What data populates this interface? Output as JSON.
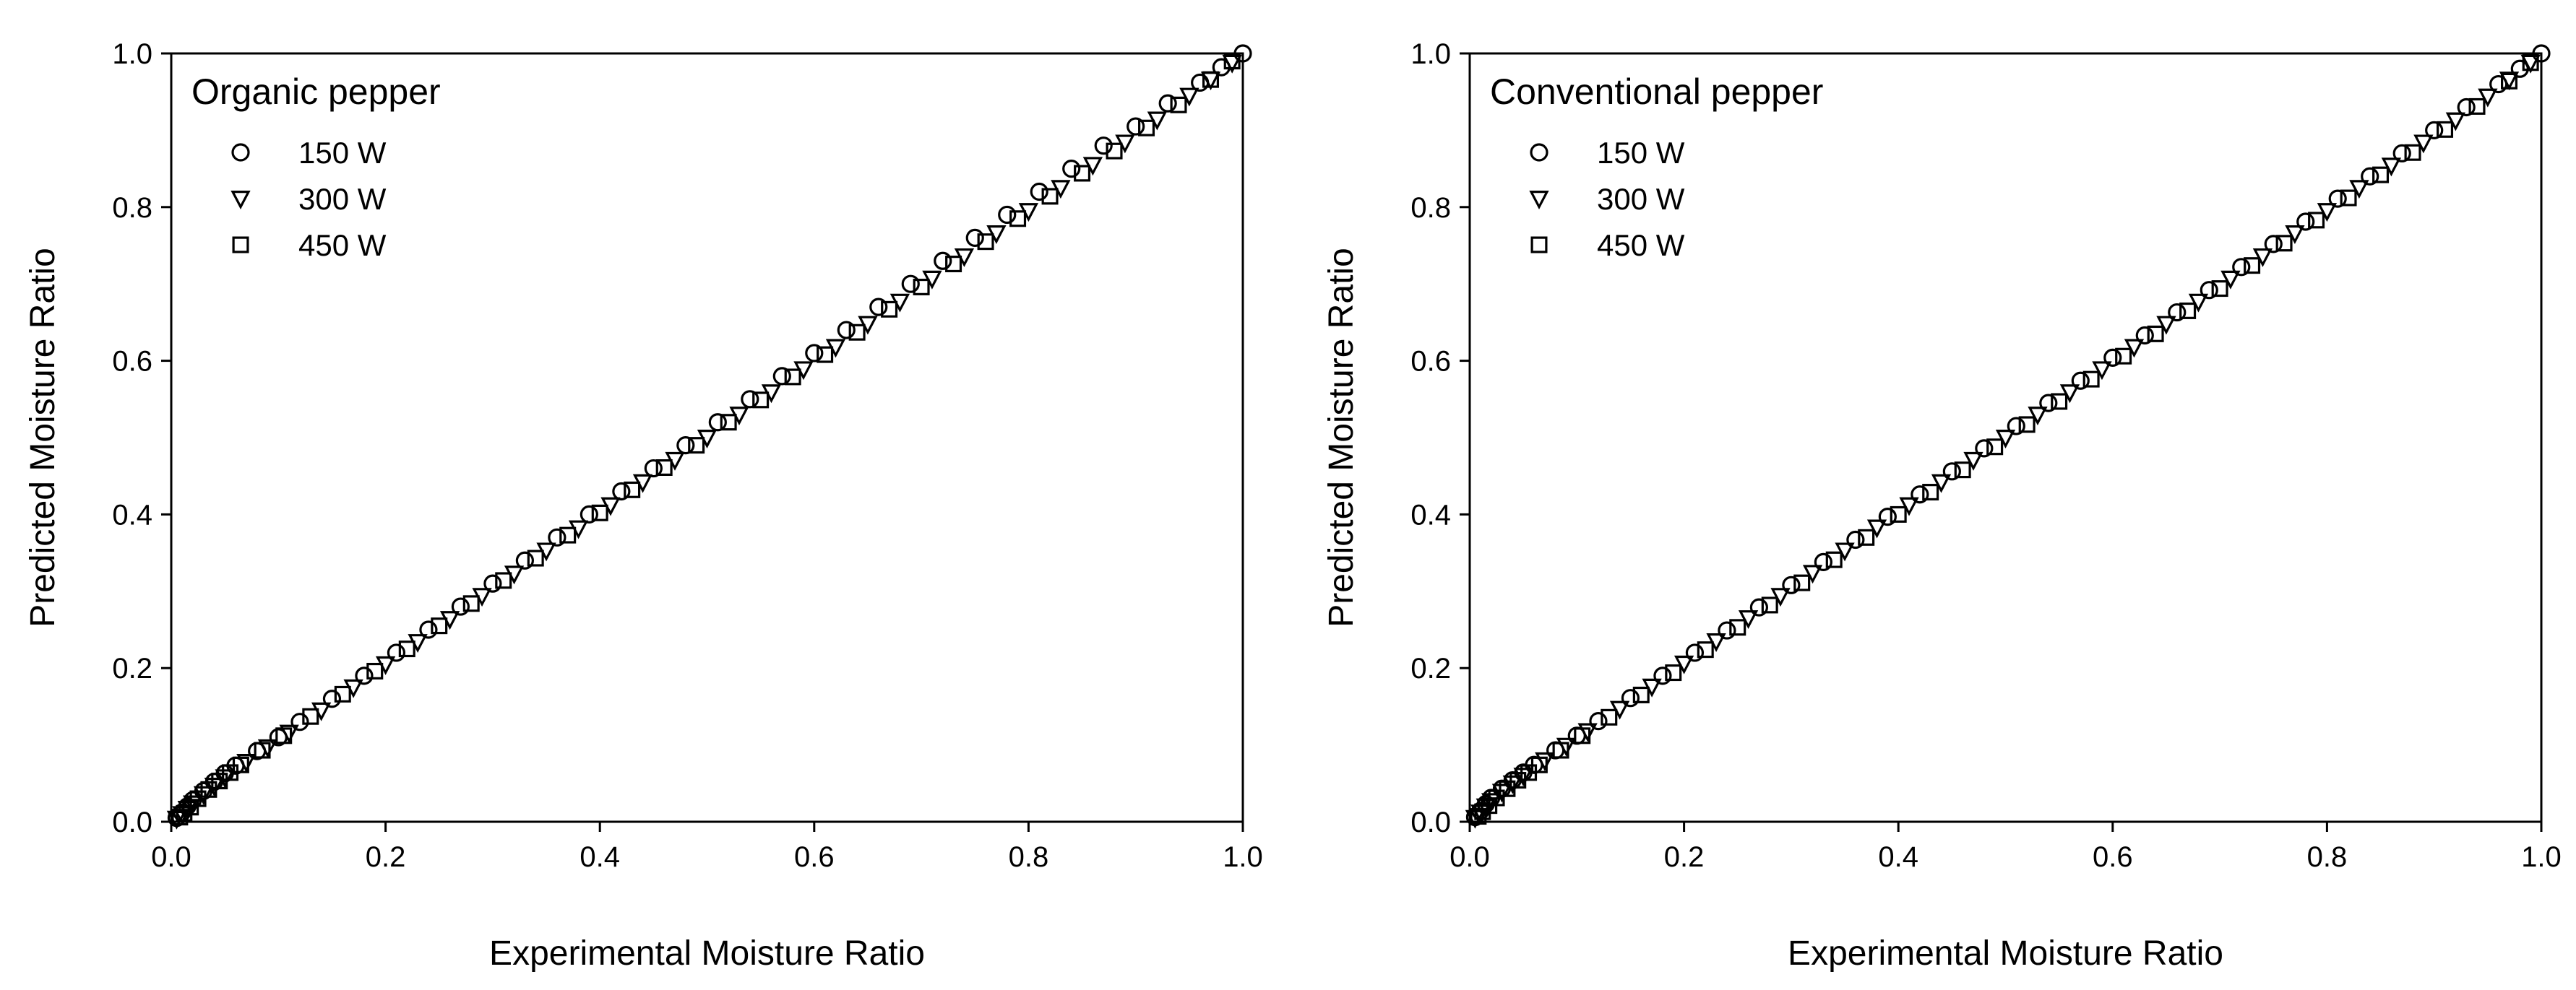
{
  "chart_data": [
    {
      "type": "scatter",
      "title": "Organic pepper",
      "xlabel": "Experimental Moisture Ratio",
      "ylabel": "Predicted Moisture Ratio",
      "xlim": [
        0.0,
        1.0
      ],
      "ylim": [
        0.0,
        1.0
      ],
      "xticks": [
        "0.0",
        "0.2",
        "0.4",
        "0.6",
        "0.8",
        "1.0"
      ],
      "yticks": [
        "0.0",
        "0.2",
        "0.4",
        "0.6",
        "0.8",
        "1.0"
      ],
      "legend_position": "top-left",
      "series": [
        {
          "name": "150 W",
          "marker": "circle",
          "x": [
            0.005,
            0.01,
            0.015,
            0.02,
            0.03,
            0.04,
            0.05,
            0.06,
            0.08,
            0.1,
            0.12,
            0.15,
            0.18,
            0.21,
            0.24,
            0.27,
            0.3,
            0.33,
            0.36,
            0.39,
            0.42,
            0.45,
            0.48,
            0.51,
            0.54,
            0.57,
            0.6,
            0.63,
            0.66,
            0.69,
            0.72,
            0.75,
            0.78,
            0.81,
            0.84,
            0.87,
            0.9,
            0.93,
            0.96,
            0.98,
            1.0
          ],
          "y": [
            0.005,
            0.012,
            0.02,
            0.028,
            0.04,
            0.052,
            0.063,
            0.073,
            0.092,
            0.11,
            0.13,
            0.16,
            0.19,
            0.22,
            0.25,
            0.28,
            0.31,
            0.34,
            0.37,
            0.4,
            0.43,
            0.46,
            0.49,
            0.52,
            0.55,
            0.58,
            0.61,
            0.64,
            0.67,
            0.7,
            0.73,
            0.76,
            0.79,
            0.82,
            0.85,
            0.88,
            0.905,
            0.935,
            0.962,
            0.982,
            1.0
          ]
        },
        {
          "name": "300 W",
          "marker": "triangle-down",
          "x": [
            0.005,
            0.01,
            0.015,
            0.02,
            0.03,
            0.04,
            0.05,
            0.07,
            0.09,
            0.11,
            0.14,
            0.17,
            0.2,
            0.23,
            0.26,
            0.29,
            0.32,
            0.35,
            0.38,
            0.41,
            0.44,
            0.47,
            0.5,
            0.53,
            0.56,
            0.59,
            0.62,
            0.65,
            0.68,
            0.71,
            0.74,
            0.77,
            0.8,
            0.83,
            0.86,
            0.89,
            0.92,
            0.95,
            0.97,
            0.99
          ],
          "y": [
            0.004,
            0.01,
            0.017,
            0.024,
            0.036,
            0.047,
            0.058,
            0.078,
            0.097,
            0.116,
            0.145,
            0.175,
            0.205,
            0.234,
            0.264,
            0.294,
            0.323,
            0.353,
            0.382,
            0.412,
            0.442,
            0.471,
            0.5,
            0.53,
            0.559,
            0.589,
            0.618,
            0.648,
            0.677,
            0.707,
            0.736,
            0.766,
            0.795,
            0.825,
            0.855,
            0.884,
            0.914,
            0.945,
            0.966,
            0.988
          ]
        },
        {
          "name": "450 W",
          "marker": "square",
          "x": [
            0.008,
            0.012,
            0.018,
            0.025,
            0.035,
            0.045,
            0.055,
            0.065,
            0.085,
            0.105,
            0.13,
            0.16,
            0.19,
            0.22,
            0.25,
            0.28,
            0.31,
            0.34,
            0.37,
            0.4,
            0.43,
            0.46,
            0.49,
            0.52,
            0.55,
            0.58,
            0.61,
            0.64,
            0.67,
            0.7,
            0.73,
            0.76,
            0.79,
            0.82,
            0.85,
            0.88,
            0.91,
            0.94,
            0.97,
            0.99
          ],
          "y": [
            0.006,
            0.011,
            0.019,
            0.03,
            0.042,
            0.053,
            0.064,
            0.074,
            0.093,
            0.112,
            0.137,
            0.166,
            0.196,
            0.225,
            0.255,
            0.284,
            0.314,
            0.343,
            0.373,
            0.402,
            0.432,
            0.461,
            0.49,
            0.52,
            0.549,
            0.579,
            0.608,
            0.637,
            0.667,
            0.696,
            0.726,
            0.755,
            0.785,
            0.814,
            0.844,
            0.873,
            0.903,
            0.933,
            0.966,
            0.99
          ]
        }
      ]
    },
    {
      "type": "scatter",
      "title": "Conventional pepper",
      "xlabel": "Experimental Moisture Ratio",
      "ylabel": "Predicted Moisture Ratio",
      "xlim": [
        0.0,
        1.0
      ],
      "ylim": [
        0.0,
        1.0
      ],
      "xticks": [
        "0.0",
        "0.2",
        "0.4",
        "0.6",
        "0.8",
        "1.0"
      ],
      "yticks": [
        "0.0",
        "0.2",
        "0.4",
        "0.6",
        "0.8",
        "1.0"
      ],
      "legend_position": "top-left",
      "series": [
        {
          "name": "150 W",
          "marker": "circle",
          "x": [
            0.005,
            0.01,
            0.015,
            0.02,
            0.03,
            0.04,
            0.05,
            0.06,
            0.08,
            0.1,
            0.12,
            0.15,
            0.18,
            0.21,
            0.24,
            0.27,
            0.3,
            0.33,
            0.36,
            0.39,
            0.42,
            0.45,
            0.48,
            0.51,
            0.54,
            0.57,
            0.6,
            0.63,
            0.66,
            0.69,
            0.72,
            0.75,
            0.78,
            0.81,
            0.84,
            0.87,
            0.9,
            0.93,
            0.96,
            0.98,
            1.0
          ],
          "y": [
            0.006,
            0.014,
            0.023,
            0.031,
            0.043,
            0.054,
            0.064,
            0.074,
            0.093,
            0.112,
            0.131,
            0.161,
            0.19,
            0.22,
            0.249,
            0.279,
            0.308,
            0.338,
            0.367,
            0.397,
            0.426,
            0.456,
            0.486,
            0.515,
            0.545,
            0.574,
            0.604,
            0.633,
            0.663,
            0.692,
            0.722,
            0.752,
            0.781,
            0.811,
            0.84,
            0.87,
            0.9,
            0.93,
            0.96,
            0.98,
            1.0
          ]
        },
        {
          "name": "300 W",
          "marker": "triangle-down",
          "x": [
            0.005,
            0.01,
            0.015,
            0.02,
            0.03,
            0.04,
            0.05,
            0.07,
            0.09,
            0.11,
            0.14,
            0.17,
            0.2,
            0.23,
            0.26,
            0.29,
            0.32,
            0.35,
            0.38,
            0.41,
            0.44,
            0.47,
            0.5,
            0.53,
            0.56,
            0.59,
            0.62,
            0.65,
            0.68,
            0.71,
            0.74,
            0.77,
            0.8,
            0.83,
            0.86,
            0.89,
            0.92,
            0.95,
            0.97,
            0.99
          ],
          "y": [
            0.005,
            0.012,
            0.02,
            0.027,
            0.039,
            0.05,
            0.06,
            0.08,
            0.099,
            0.118,
            0.147,
            0.176,
            0.206,
            0.235,
            0.265,
            0.294,
            0.324,
            0.353,
            0.383,
            0.412,
            0.442,
            0.471,
            0.5,
            0.53,
            0.559,
            0.589,
            0.618,
            0.648,
            0.677,
            0.707,
            0.736,
            0.766,
            0.795,
            0.825,
            0.854,
            0.884,
            0.913,
            0.944,
            0.966,
            0.988
          ]
        },
        {
          "name": "450 W",
          "marker": "square",
          "x": [
            0.008,
            0.012,
            0.018,
            0.025,
            0.035,
            0.045,
            0.055,
            0.065,
            0.085,
            0.105,
            0.13,
            0.16,
            0.19,
            0.22,
            0.25,
            0.28,
            0.31,
            0.34,
            0.37,
            0.4,
            0.43,
            0.46,
            0.49,
            0.52,
            0.55,
            0.58,
            0.61,
            0.64,
            0.67,
            0.7,
            0.73,
            0.76,
            0.79,
            0.82,
            0.85,
            0.88,
            0.91,
            0.94,
            0.97,
            0.99
          ],
          "y": [
            0.007,
            0.013,
            0.021,
            0.031,
            0.043,
            0.054,
            0.064,
            0.074,
            0.093,
            0.112,
            0.136,
            0.165,
            0.194,
            0.224,
            0.253,
            0.282,
            0.311,
            0.341,
            0.37,
            0.4,
            0.429,
            0.458,
            0.488,
            0.517,
            0.547,
            0.576,
            0.606,
            0.635,
            0.665,
            0.694,
            0.724,
            0.753,
            0.783,
            0.812,
            0.842,
            0.871,
            0.901,
            0.931,
            0.964,
            0.988
          ]
        }
      ]
    }
  ]
}
